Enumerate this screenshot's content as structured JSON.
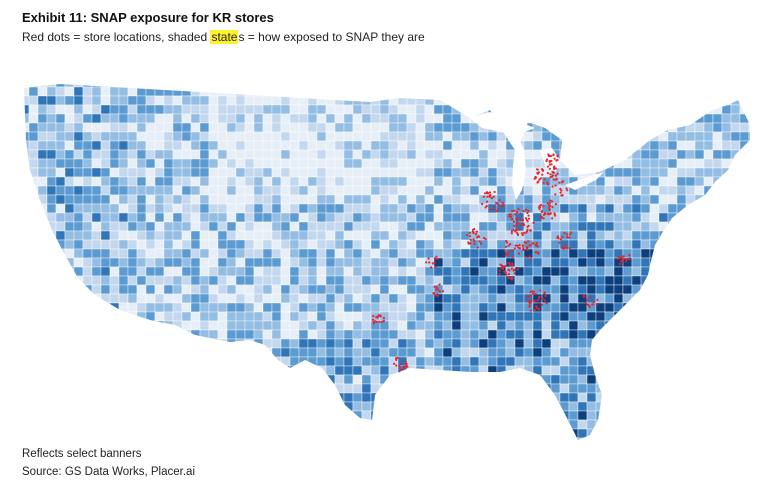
{
  "header": {
    "title": "Exhibit 11: SNAP exposure for KR stores",
    "subtitle_prefix": "Red dots = store locations, shaded ",
    "subtitle_highlight": "state",
    "subtitle_suffix": "s = how exposed to SNAP they are"
  },
  "footer": {
    "note": "Reflects select banners",
    "source": "Source: GS Data Works, Placer.ai"
  },
  "legend": {
    "marker_color": "#e8242a",
    "shade_colors": [
      "#e6eef8",
      "#c3d8ee",
      "#93bde2",
      "#5b9bd1",
      "#2f75b8",
      "#0d3f7d"
    ]
  },
  "map": {
    "type": "choropleth-with-points",
    "region": "Contiguous United States",
    "shading": "SNAP exposure, light to dark blue",
    "points": "store locations"
  }
}
